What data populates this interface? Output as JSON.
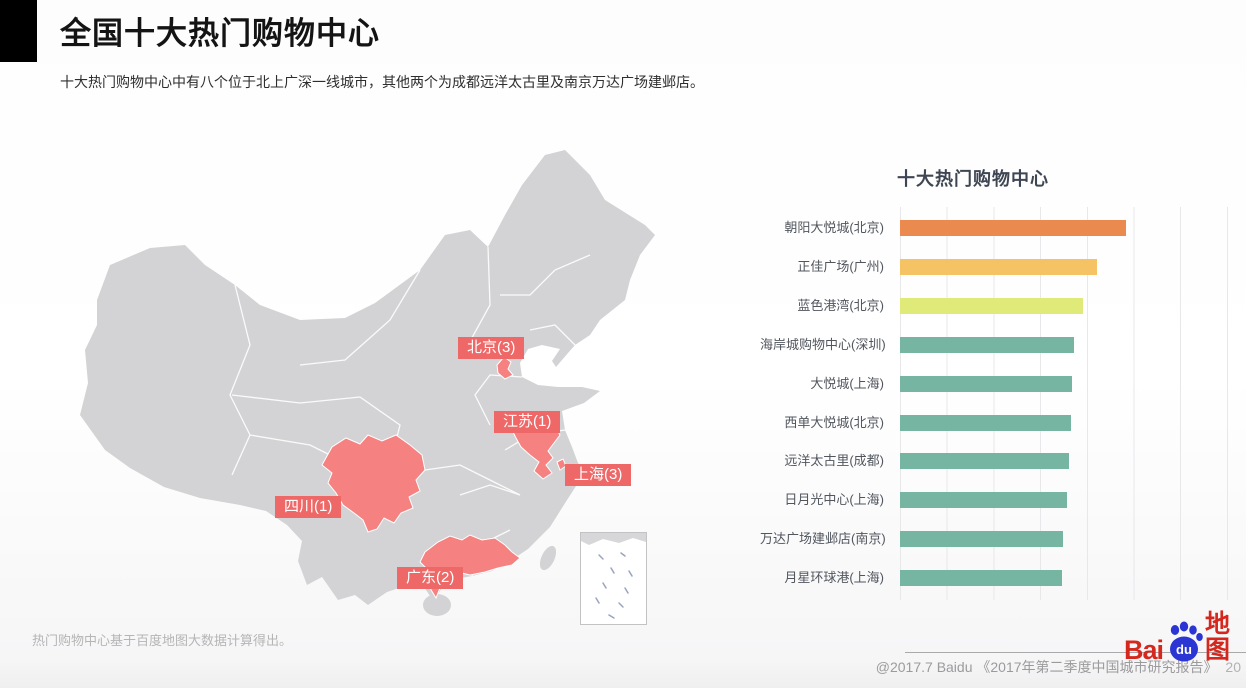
{
  "header": {
    "title": "全国十大热门购物中心",
    "subtitle": "十大热门购物中心中有八个位于北上广深一线城市，其他两个为成都远洋太古里及南京万达广场建邺店。"
  },
  "map": {
    "region_labels": [
      {
        "text": "北京(3)"
      },
      {
        "text": "江苏(1)"
      },
      {
        "text": "上海(3)"
      },
      {
        "text": "四川(1)"
      },
      {
        "text": "广东(2)"
      }
    ],
    "colors": {
      "land": "#d3d3d5",
      "highlight": "#f58181",
      "label_bg": "#ef6868",
      "label_text": "#ffffff"
    }
  },
  "chart_data": {
    "type": "bar",
    "orientation": "horizontal",
    "title": "十大热门购物中心",
    "categories": [
      "朝阳大悦城(北京)",
      "正佳广场(广州)",
      "蓝色港湾(北京)",
      "海岸城购物中心(深圳)",
      "大悦城(上海)",
      "西单大悦城(北京)",
      "远洋太古里(成都)",
      "日月光中心(上海)",
      "万达广场建邺店(南京)",
      "月星环球港(上海)"
    ],
    "values": [
      100,
      87,
      81,
      77,
      76,
      75.5,
      75,
      74,
      72,
      71.8
    ],
    "value_note": "no numeric axis shown; values estimated from bar lengths, longest bar = 100",
    "bar_colors": [
      "#eb8a4f",
      "#f6c364",
      "#dfea78",
      "#75b5a2",
      "#75b5a2",
      "#75b5a2",
      "#75b5a2",
      "#75b5a2",
      "#75b5a2",
      "#75b5a2"
    ],
    "grid": true,
    "gridline_count": 8,
    "legend": false,
    "xlabel": "",
    "ylabel": ""
  },
  "footer": {
    "footnote": "热门购物中心基于百度地图大数据计算得出。",
    "credit": "@2017.7 Baidu 《2017年第二季度中国城市研究报告》",
    "page_number": "20"
  },
  "logo": {
    "bai": "Bai",
    "du": "du",
    "product": "地图"
  }
}
